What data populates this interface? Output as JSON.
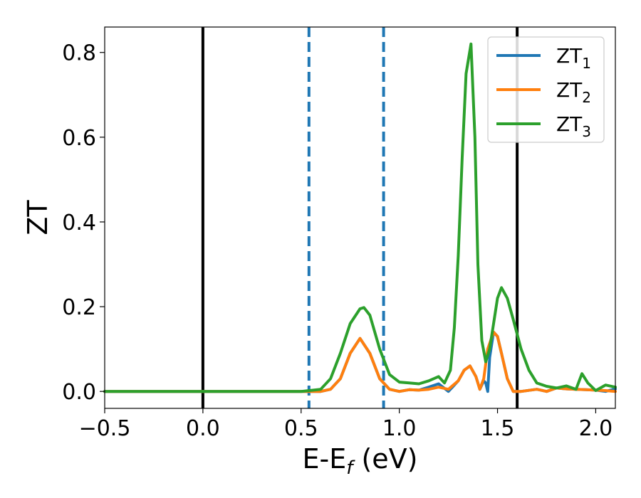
{
  "chart_data": {
    "type": "line",
    "title": "",
    "xlabel": "E-E",
    "xlabel_sub": "f",
    "xlabel_unit": " (eV)",
    "ylabel": "ZT",
    "xlim": [
      -0.5,
      2.1
    ],
    "ylim": [
      -0.04,
      0.86
    ],
    "x_ticks": [
      -0.5,
      0.0,
      0.5,
      1.0,
      1.5,
      2.0
    ],
    "x_tick_labels": [
      "−0.5",
      "0.0",
      "0.5",
      "1.0",
      "1.5",
      "2.0"
    ],
    "y_ticks": [
      0.0,
      0.2,
      0.4,
      0.6,
      0.8
    ],
    "y_tick_labels": [
      "0.0",
      "0.2",
      "0.4",
      "0.6",
      "0.8"
    ],
    "grid": false,
    "legend_position": "top-right",
    "vertical_lines": [
      {
        "x": 0.0,
        "style": "solid",
        "color": "#000000"
      },
      {
        "x": 1.6,
        "style": "solid",
        "color": "#000000"
      },
      {
        "x": 0.54,
        "style": "dashed",
        "color": "#1f77b4"
      },
      {
        "x": 0.92,
        "style": "dashed",
        "color": "#1f77b4"
      }
    ],
    "series": [
      {
        "name": "ZT",
        "name_sub": "1",
        "color": "#1f77b4",
        "x": [
          -0.5,
          0.5,
          0.6,
          0.65,
          0.7,
          0.75,
          0.8,
          0.85,
          0.9,
          0.95,
          1.0,
          1.05,
          1.1,
          1.15,
          1.2,
          1.25,
          1.3,
          1.33,
          1.36,
          1.39,
          1.41,
          1.43,
          1.44,
          1.45,
          1.46,
          1.48,
          1.5,
          1.52,
          1.55,
          1.58,
          1.62,
          1.7,
          1.75,
          1.8,
          1.85,
          1.9,
          1.95,
          2.0,
          2.05,
          2.1
        ],
        "y": [
          0.0,
          0.0,
          0.0,
          0.005,
          0.03,
          0.09,
          0.125,
          0.09,
          0.03,
          0.005,
          0.0,
          0.004,
          0.003,
          0.01,
          0.018,
          0.0,
          0.025,
          0.05,
          0.06,
          0.035,
          0.005,
          0.025,
          0.02,
          0.0,
          0.08,
          0.14,
          0.13,
          0.09,
          0.03,
          0.0,
          0.0,
          0.005,
          0.0,
          0.008,
          0.006,
          0.005,
          0.004,
          0.003,
          0.0,
          0.006
        ]
      },
      {
        "name": "ZT",
        "name_sub": "2",
        "color": "#ff7f0e",
        "x": [
          -0.5,
          0.5,
          0.6,
          0.65,
          0.7,
          0.75,
          0.8,
          0.85,
          0.9,
          0.95,
          1.0,
          1.05,
          1.1,
          1.15,
          1.2,
          1.25,
          1.3,
          1.33,
          1.36,
          1.39,
          1.41,
          1.43,
          1.45,
          1.48,
          1.5,
          1.52,
          1.55,
          1.58,
          1.62,
          1.7,
          1.75,
          1.8,
          1.85,
          1.9,
          1.95,
          2.0,
          2.05,
          2.1
        ],
        "y": [
          0.0,
          0.0,
          0.0,
          0.005,
          0.03,
          0.09,
          0.125,
          0.09,
          0.03,
          0.005,
          0.0,
          0.004,
          0.003,
          0.005,
          0.01,
          0.005,
          0.025,
          0.05,
          0.06,
          0.035,
          0.005,
          0.03,
          0.1,
          0.14,
          0.13,
          0.09,
          0.03,
          0.0,
          0.0,
          0.005,
          0.0,
          0.008,
          0.006,
          0.005,
          0.004,
          0.003,
          0.002,
          0.0
        ]
      },
      {
        "name": "ZT",
        "name_sub": "3",
        "color": "#2ca02c",
        "x": [
          -0.5,
          0.5,
          0.6,
          0.65,
          0.7,
          0.75,
          0.8,
          0.82,
          0.85,
          0.9,
          0.95,
          1.0,
          1.05,
          1.1,
          1.15,
          1.2,
          1.23,
          1.26,
          1.28,
          1.3,
          1.32,
          1.34,
          1.365,
          1.385,
          1.4,
          1.42,
          1.44,
          1.46,
          1.48,
          1.5,
          1.52,
          1.55,
          1.58,
          1.62,
          1.66,
          1.7,
          1.75,
          1.8,
          1.85,
          1.9,
          1.93,
          1.96,
          2.0,
          2.05,
          2.1
        ],
        "y": [
          0.0,
          0.0,
          0.005,
          0.03,
          0.09,
          0.16,
          0.195,
          0.198,
          0.18,
          0.1,
          0.04,
          0.022,
          0.02,
          0.018,
          0.025,
          0.035,
          0.02,
          0.05,
          0.15,
          0.32,
          0.55,
          0.75,
          0.82,
          0.6,
          0.3,
          0.12,
          0.07,
          0.1,
          0.16,
          0.22,
          0.245,
          0.22,
          0.17,
          0.1,
          0.05,
          0.02,
          0.012,
          0.008,
          0.013,
          0.005,
          0.042,
          0.02,
          0.002,
          0.015,
          0.01
        ]
      }
    ]
  }
}
